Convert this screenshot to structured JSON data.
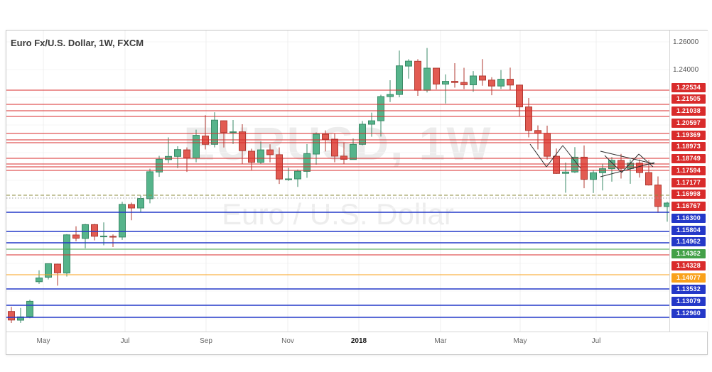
{
  "header": {
    "title": "Euro Fx/U.S. Dollar, 1W, FXCM"
  },
  "watermark": {
    "line1": "EURUSD, 1W",
    "line2": "Euro / U.S. Dollar"
  },
  "price_axis": {
    "ticks": [
      {
        "text": "1.26000"
      },
      {
        "text": "1.24000"
      }
    ]
  },
  "time_axis": {
    "labels": [
      {
        "text": "May"
      },
      {
        "text": "Jul"
      },
      {
        "text": "Sep"
      },
      {
        "text": "Nov"
      },
      {
        "text": "2018",
        "emphasis": true
      },
      {
        "text": "Mar"
      },
      {
        "text": "May"
      },
      {
        "text": "Jul"
      }
    ]
  },
  "chart_data": {
    "type": "candlestick",
    "title": "Euro Fx/U.S. Dollar, 1W, FXCM",
    "symbol": "EURUSD",
    "timeframe": "1W",
    "provider": "FXCM",
    "x_tick_labels": [
      "May",
      "Jul",
      "Sep",
      "Nov",
      "2018",
      "Mar",
      "May",
      "Jul"
    ],
    "y_tick_labels": [
      "1.26000",
      "1.24000"
    ],
    "y_range": [
      1.051,
      1.268
    ],
    "grid": "light vertical month lines, faint horizontal every 0.02",
    "legend": "none",
    "up_color": "#56b48b",
    "down_color": "#e25b52",
    "horizontal_levels": [
      {
        "price": 1.22534,
        "color": "#d92b2b"
      },
      {
        "price": 1.21505,
        "color": "#d92b2b"
      },
      {
        "price": 1.21038,
        "color": "#d92b2b"
      },
      {
        "price": 1.20597,
        "color": "#d92b2b"
      },
      {
        "price": 1.19369,
        "color": "#d92b2b"
      },
      {
        "price": 1.18973,
        "color": "#d92b2b"
      },
      {
        "price": 1.18749,
        "color": "#d92b2b"
      },
      {
        "price": 1.17594,
        "color": "#d92b2b"
      },
      {
        "price": 1.17177,
        "color": "#d92b2b"
      },
      {
        "price": 1.16998,
        "color": "#d92b2b"
      },
      {
        "price": 1.16767,
        "color": "#d92b2b"
      },
      {
        "price": 1.163,
        "color": "#2438c8"
      },
      {
        "price": 1.15804,
        "color": "#2438c8"
      },
      {
        "price": 1.14962,
        "color": "#2438c8"
      },
      {
        "price": 1.14362,
        "color": "#43a047"
      },
      {
        "price": 1.14328,
        "color": "#d92b2b"
      },
      {
        "price": 1.14077,
        "color": "#f9a11b"
      },
      {
        "price": 1.13532,
        "color": "#2438c8"
      },
      {
        "price": 1.13079,
        "color": "#2438c8"
      },
      {
        "price": 1.1296,
        "color": "#2438c8"
      }
    ],
    "candles_ohlc": [
      [
        1.0653,
        1.0686,
        1.0569,
        1.0591
      ],
      [
        1.059,
        1.0678,
        1.057,
        1.0614
      ],
      [
        1.0615,
        1.0737,
        1.0604,
        1.0726
      ],
      [
        1.0868,
        1.095,
        1.0852,
        1.0895
      ],
      [
        1.09,
        1.1,
        1.0884,
        1.0998
      ],
      [
        1.0995,
        1.0998,
        1.0839,
        1.0932
      ],
      [
        1.093,
        1.1211,
        1.0905,
        1.1206
      ],
      [
        1.1205,
        1.1268,
        1.116,
        1.1182
      ],
      [
        1.118,
        1.1285,
        1.1109,
        1.128
      ],
      [
        1.128,
        1.1285,
        1.1166,
        1.1196
      ],
      [
        1.1195,
        1.1296,
        1.1131,
        1.1197
      ],
      [
        1.1195,
        1.1209,
        1.1118,
        1.1193
      ],
      [
        1.119,
        1.1445,
        1.117,
        1.1426
      ],
      [
        1.1425,
        1.1439,
        1.1312,
        1.14
      ],
      [
        1.14,
        1.1489,
        1.137,
        1.1469
      ],
      [
        1.1467,
        1.1684,
        1.1434,
        1.1662
      ],
      [
        1.166,
        1.1777,
        1.1625,
        1.1752
      ],
      [
        1.175,
        1.191,
        1.1724,
        1.1773
      ],
      [
        1.1773,
        1.1846,
        1.1688,
        1.1822
      ],
      [
        1.182,
        1.1838,
        1.1661,
        1.1762
      ],
      [
        1.176,
        1.1966,
        1.173,
        1.1925
      ],
      [
        1.192,
        1.207,
        1.1823,
        1.186
      ],
      [
        1.186,
        1.2092,
        1.1838,
        1.2035
      ],
      [
        1.203,
        1.2032,
        1.1837,
        1.1945
      ],
      [
        1.1945,
        1.2036,
        1.1862,
        1.195
      ],
      [
        1.195,
        1.2005,
        1.1717,
        1.1814
      ],
      [
        1.181,
        1.1828,
        1.167,
        1.173
      ],
      [
        1.173,
        1.188,
        1.1719,
        1.182
      ],
      [
        1.182,
        1.186,
        1.173,
        1.1785
      ],
      [
        1.1785,
        1.1838,
        1.1574,
        1.1609
      ],
      [
        1.161,
        1.169,
        1.1596,
        1.161
      ],
      [
        1.161,
        1.1678,
        1.1553,
        1.1665
      ],
      [
        1.1665,
        1.1862,
        1.1618,
        1.1793
      ],
      [
        1.179,
        1.1946,
        1.1713,
        1.1934
      ],
      [
        1.1933,
        1.1961,
        1.1809,
        1.1897
      ],
      [
        1.1897,
        1.194,
        1.173,
        1.1775
      ],
      [
        1.1775,
        1.1875,
        1.1718,
        1.1752
      ],
      [
        1.175,
        1.1902,
        1.1749,
        1.186
      ],
      [
        1.186,
        1.2028,
        1.1853,
        1.2005
      ],
      [
        1.2005,
        1.2089,
        1.1915,
        1.203
      ],
      [
        1.203,
        1.2218,
        1.1916,
        1.2205
      ],
      [
        1.2205,
        1.2323,
        1.2165,
        1.222
      ],
      [
        1.222,
        1.2537,
        1.22,
        1.2427
      ],
      [
        1.2425,
        1.2475,
        1.2335,
        1.2461
      ],
      [
        1.246,
        1.2475,
        1.221,
        1.225
      ],
      [
        1.225,
        1.2556,
        1.2235,
        1.241
      ],
      [
        1.241,
        1.2413,
        1.2258,
        1.2295
      ],
      [
        1.2295,
        1.2365,
        1.2155,
        1.2315
      ],
      [
        1.2315,
        1.2446,
        1.2269,
        1.2307
      ],
      [
        1.2307,
        1.2413,
        1.2259,
        1.229
      ],
      [
        1.229,
        1.2389,
        1.224,
        1.2354
      ],
      [
        1.2354,
        1.2476,
        1.2283,
        1.2324
      ],
      [
        1.2324,
        1.2345,
        1.2215,
        1.2281
      ],
      [
        1.2281,
        1.2397,
        1.226,
        1.233
      ],
      [
        1.233,
        1.2414,
        1.225,
        1.2288
      ],
      [
        1.2288,
        1.229,
        1.206,
        1.213
      ],
      [
        1.213,
        1.2195,
        1.191,
        1.196
      ],
      [
        1.196,
        1.1997,
        1.1823,
        1.194
      ],
      [
        1.194,
        1.1995,
        1.175,
        1.1774
      ],
      [
        1.1774,
        1.183,
        1.1646,
        1.165
      ],
      [
        1.165,
        1.1728,
        1.151,
        1.166
      ],
      [
        1.166,
        1.184,
        1.1653,
        1.1767
      ],
      [
        1.1767,
        1.1852,
        1.1543,
        1.1607
      ],
      [
        1.1607,
        1.1675,
        1.1508,
        1.1655
      ],
      [
        1.1655,
        1.1721,
        1.1527,
        1.1684
      ],
      [
        1.1684,
        1.1768,
        1.159,
        1.1744
      ],
      [
        1.1744,
        1.1791,
        1.1613,
        1.1686
      ],
      [
        1.1686,
        1.175,
        1.1575,
        1.1724
      ],
      [
        1.1724,
        1.175,
        1.162,
        1.1656
      ],
      [
        1.1656,
        1.1746,
        1.1562,
        1.1566
      ],
      [
        1.1566,
        1.1628,
        1.1365,
        1.1411
      ],
      [
        1.1411,
        1.1445,
        1.1301,
        1.1436
      ]
    ]
  }
}
